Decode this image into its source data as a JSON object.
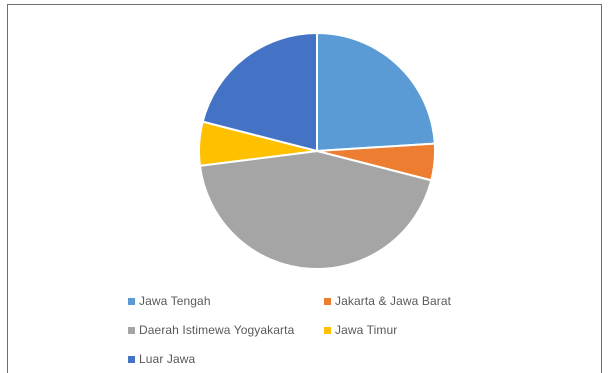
{
  "chart_data": {
    "type": "pie",
    "title": "",
    "categories": [
      "Jawa Tengah",
      "Jakarta & Jawa Barat",
      "Daerah Istimewa Yogyakarta",
      "Jawa Timur",
      "Luar Jawa"
    ],
    "values": [
      24,
      5,
      44,
      6,
      21
    ],
    "colors": [
      "#5b9bd5",
      "#ed7d31",
      "#a5a5a5",
      "#ffc000",
      "#4472c4"
    ],
    "legend_position": "bottom",
    "start_angle_deg": 0,
    "direction": "clockwise"
  },
  "legend": {
    "items": [
      {
        "label": "Jawa Tengah",
        "color": "#5b9bd5",
        "icon": "square-swatch-icon"
      },
      {
        "label": "Jakarta & Jawa Barat",
        "color": "#ed7d31",
        "icon": "square-swatch-icon"
      },
      {
        "label": "Daerah Istimewa Yogyakarta",
        "color": "#a5a5a5",
        "icon": "square-swatch-icon"
      },
      {
        "label": "Jawa Timur",
        "color": "#ffc000",
        "icon": "square-swatch-icon"
      },
      {
        "label": "Luar Jawa",
        "color": "#4472c4",
        "icon": "square-swatch-icon"
      }
    ]
  }
}
